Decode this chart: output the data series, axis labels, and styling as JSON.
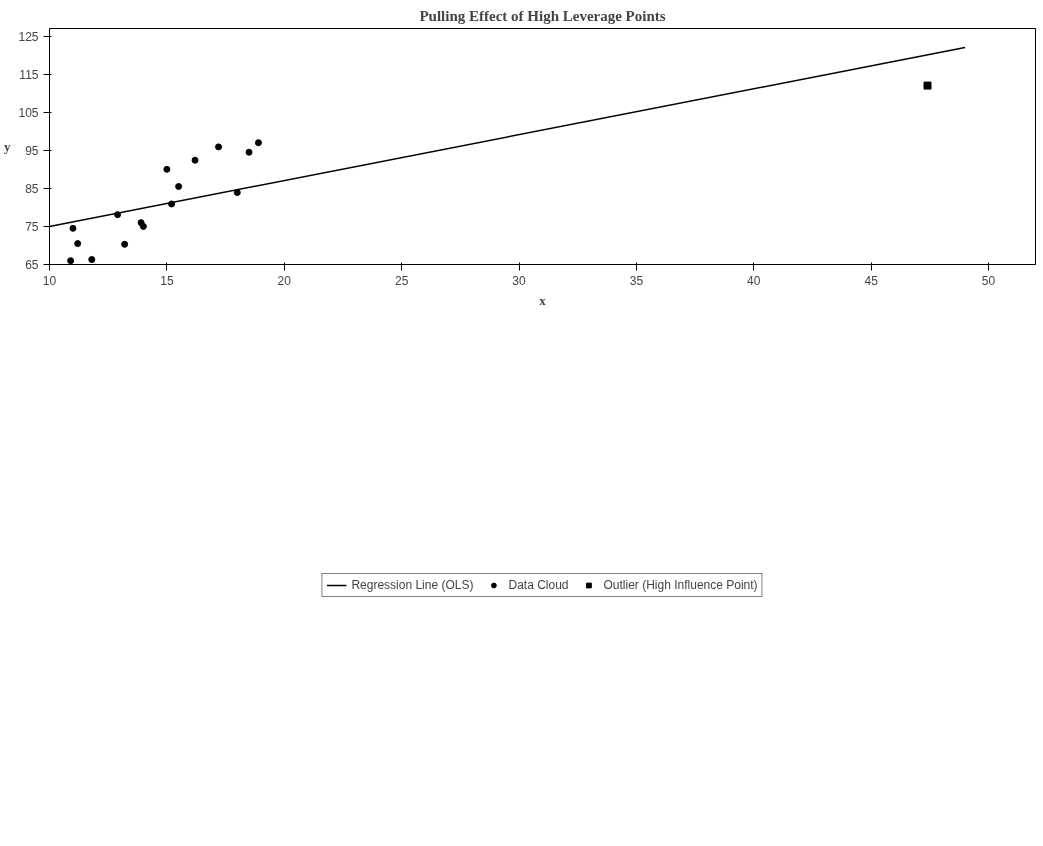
{
  "chart_data": {
    "type": "scatter",
    "title": "Pulling Effect of High Leverage Points",
    "xlabel": "x",
    "ylabel": "y",
    "xlim": [
      10,
      52
    ],
    "ylim": [
      65,
      127
    ],
    "xticks": [
      10,
      15,
      20,
      25,
      30,
      35,
      40,
      45,
      50
    ],
    "yticks": [
      65,
      75,
      85,
      95,
      105,
      115,
      125
    ],
    "grid": false,
    "legend": "bottom",
    "series": [
      {
        "name": "Regression Line (OLS)",
        "type": "line",
        "color": "#000000",
        "marker": "none",
        "x": [
          10,
          49
        ],
        "values": [
          75,
          122
        ]
      },
      {
        "name": "Data Cloud",
        "color": "#000000",
        "marker": "circle",
        "x": [
          10.9,
          11.0,
          11.2,
          11.8,
          12.9,
          13.2,
          13.9,
          14.0,
          15.0,
          15.2,
          15.5,
          16.2,
          17.2,
          18.0,
          18.5,
          18.9
        ],
        "values": [
          66.0,
          74.5,
          70.5,
          66.3,
          78.1,
          70.3,
          76.0,
          75.0,
          90.0,
          80.9,
          85.5,
          92.4,
          95.9,
          83.9,
          94.5,
          97.0
        ]
      },
      {
        "name": "Outlier (High Influence Point)",
        "color": "#000000",
        "marker": "square",
        "x": [
          47.4
        ],
        "values": [
          112
        ]
      }
    ]
  }
}
